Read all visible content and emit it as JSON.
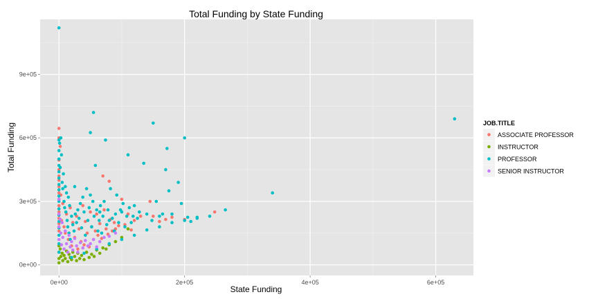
{
  "chart_data": {
    "type": "scatter",
    "title": "Total Funding by State Funding",
    "xlabel": "State Funding",
    "ylabel": "Total Funding",
    "xlim": [
      -30000,
      660000
    ],
    "ylim": [
      -50000,
      1160000
    ],
    "x_ticks": [
      0,
      200000,
      400000,
      600000
    ],
    "x_tick_labels": [
      "0e+00",
      "2e+05",
      "4e+05",
      "6e+05"
    ],
    "y_ticks": [
      0,
      300000,
      600000,
      900000
    ],
    "y_tick_labels": [
      "0e+00",
      "3e+05",
      "6e+05",
      "9e+05"
    ],
    "grid": true,
    "legend": {
      "title": "JOB.TITLE",
      "position": "right"
    },
    "series": [
      {
        "name": "ASSOCIATE PROFESSOR",
        "color": "#F8766D",
        "points": [
          [
            0,
            645000
          ],
          [
            0,
            600000
          ],
          [
            0,
            495000
          ],
          [
            0,
            450000
          ],
          [
            0,
            420000
          ],
          [
            0,
            400000
          ],
          [
            0,
            370000
          ],
          [
            0,
            340000
          ],
          [
            0,
            310000
          ],
          [
            0,
            280000
          ],
          [
            0,
            250000
          ],
          [
            0,
            220000
          ],
          [
            0,
            195000
          ],
          [
            0,
            160000
          ],
          [
            2000,
            560000
          ],
          [
            3000,
            330000
          ],
          [
            4000,
            210000
          ],
          [
            6000,
            290000
          ],
          [
            8000,
            180000
          ],
          [
            10000,
            150000
          ],
          [
            12000,
            240000
          ],
          [
            15000,
            120000
          ],
          [
            18000,
            270000
          ],
          [
            20000,
            90000
          ],
          [
            22000,
            200000
          ],
          [
            25000,
            130000
          ],
          [
            28000,
            230000
          ],
          [
            30000,
            75000
          ],
          [
            32000,
            170000
          ],
          [
            35000,
            110000
          ],
          [
            38000,
            280000
          ],
          [
            40000,
            95000
          ],
          [
            42000,
            205000
          ],
          [
            45000,
            150000
          ],
          [
            48000,
            85000
          ],
          [
            50000,
            250000
          ],
          [
            52000,
            180000
          ],
          [
            55000,
            120000
          ],
          [
            58000,
            160000
          ],
          [
            60000,
            240000
          ],
          [
            62000,
            140000
          ],
          [
            65000,
            195000
          ],
          [
            68000,
            125000
          ],
          [
            70000,
            420000
          ],
          [
            72000,
            260000
          ],
          [
            75000,
            170000
          ],
          [
            78000,
            145000
          ],
          [
            80000,
            395000
          ],
          [
            82000,
            215000
          ],
          [
            85000,
            160000
          ],
          [
            88000,
            200000
          ],
          [
            90000,
            170000
          ],
          [
            95000,
            185000
          ],
          [
            100000,
            310000
          ],
          [
            105000,
            190000
          ],
          [
            110000,
            240000
          ],
          [
            115000,
            165000
          ],
          [
            120000,
            210000
          ],
          [
            130000,
            230000
          ],
          [
            145000,
            300000
          ],
          [
            150000,
            230000
          ],
          [
            160000,
            205000
          ],
          [
            170000,
            215000
          ],
          [
            180000,
            225000
          ],
          [
            200000,
            215000
          ],
          [
            248000,
            250000
          ]
        ]
      },
      {
        "name": "INSTRUCTOR",
        "color": "#7CAE00",
        "points": [
          [
            0,
            90000
          ],
          [
            0,
            60000
          ],
          [
            0,
            30000
          ],
          [
            0,
            10000
          ],
          [
            2000,
            75000
          ],
          [
            3000,
            40000
          ],
          [
            5000,
            55000
          ],
          [
            6000,
            20000
          ],
          [
            8000,
            45000
          ],
          [
            10000,
            30000
          ],
          [
            12000,
            65000
          ],
          [
            14000,
            15000
          ],
          [
            16000,
            50000
          ],
          [
            18000,
            35000
          ],
          [
            20000,
            25000
          ],
          [
            22000,
            60000
          ],
          [
            25000,
            40000
          ],
          [
            28000,
            20000
          ],
          [
            30000,
            55000
          ],
          [
            33000,
            30000
          ],
          [
            36000,
            45000
          ],
          [
            40000,
            25000
          ],
          [
            44000,
            60000
          ],
          [
            48000,
            35000
          ],
          [
            52000,
            50000
          ],
          [
            56000,
            40000
          ],
          [
            60000,
            70000
          ],
          [
            65000,
            55000
          ],
          [
            70000,
            80000
          ],
          [
            75000,
            75000
          ],
          [
            80000,
            95000
          ],
          [
            90000,
            110000
          ],
          [
            100000,
            130000
          ],
          [
            110000,
            170000
          ]
        ]
      },
      {
        "name": "PROFESSOR",
        "color": "#00BFC4",
        "points": [
          [
            0,
            1120000
          ],
          [
            0,
            590000
          ],
          [
            0,
            540000
          ],
          [
            0,
            500000
          ],
          [
            0,
            470000
          ],
          [
            0,
            440000
          ],
          [
            0,
            410000
          ],
          [
            0,
            380000
          ],
          [
            0,
            355000
          ],
          [
            0,
            325000
          ],
          [
            0,
            300000
          ],
          [
            0,
            265000
          ],
          [
            0,
            235000
          ],
          [
            0,
            205000
          ],
          [
            0,
            175000
          ],
          [
            0,
            140000
          ],
          [
            0,
            100000
          ],
          [
            0,
            60000
          ],
          [
            1000,
            575000
          ],
          [
            2000,
            460000
          ],
          [
            3000,
            600000
          ],
          [
            4000,
            520000
          ],
          [
            5000,
            390000
          ],
          [
            6000,
            360000
          ],
          [
            7000,
            430000
          ],
          [
            8000,
            300000
          ],
          [
            9000,
            270000
          ],
          [
            10000,
            370000
          ],
          [
            11000,
            250000
          ],
          [
            12000,
            340000
          ],
          [
            13000,
            210000
          ],
          [
            14000,
            180000
          ],
          [
            15000,
            320000
          ],
          [
            16000,
            150000
          ],
          [
            17000,
            280000
          ],
          [
            18000,
            120000
          ],
          [
            20000,
            230000
          ],
          [
            22000,
            190000
          ],
          [
            24000,
            160000
          ],
          [
            25000,
            370000
          ],
          [
            26000,
            240000
          ],
          [
            28000,
            200000
          ],
          [
            30000,
            260000
          ],
          [
            32000,
            220000
          ],
          [
            34000,
            290000
          ],
          [
            36000,
            175000
          ],
          [
            38000,
            320000
          ],
          [
            40000,
            250000
          ],
          [
            42000,
            140000
          ],
          [
            44000,
            360000
          ],
          [
            46000,
            210000
          ],
          [
            48000,
            270000
          ],
          [
            50000,
            625000
          ],
          [
            50000,
            330000
          ],
          [
            52000,
            180000
          ],
          [
            54000,
            300000
          ],
          [
            55000,
            720000
          ],
          [
            56000,
            230000
          ],
          [
            58000,
            470000
          ],
          [
            60000,
            260000
          ],
          [
            62000,
            160000
          ],
          [
            64000,
            210000
          ],
          [
            65000,
            250000
          ],
          [
            66000,
            280000
          ],
          [
            68000,
            150000
          ],
          [
            70000,
            230000
          ],
          [
            72000,
            300000
          ],
          [
            74000,
            590000
          ],
          [
            76000,
            190000
          ],
          [
            78000,
            260000
          ],
          [
            80000,
            210000
          ],
          [
            82000,
            360000
          ],
          [
            85000,
            220000
          ],
          [
            88000,
            160000
          ],
          [
            90000,
            240000
          ],
          [
            92000,
            330000
          ],
          [
            95000,
            200000
          ],
          [
            98000,
            260000
          ],
          [
            100000,
            250000
          ],
          [
            102000,
            290000
          ],
          [
            105000,
            180000
          ],
          [
            108000,
            230000
          ],
          [
            110000,
            520000
          ],
          [
            112000,
            270000
          ],
          [
            115000,
            200000
          ],
          [
            118000,
            230000
          ],
          [
            120000,
            280000
          ],
          [
            125000,
            220000
          ],
          [
            128000,
            250000
          ],
          [
            135000,
            480000
          ],
          [
            140000,
            240000
          ],
          [
            148000,
            210000
          ],
          [
            150000,
            670000
          ],
          [
            155000,
            300000
          ],
          [
            160000,
            230000
          ],
          [
            165000,
            240000
          ],
          [
            170000,
            450000
          ],
          [
            172000,
            550000
          ],
          [
            175000,
            350000
          ],
          [
            180000,
            240000
          ],
          [
            190000,
            390000
          ],
          [
            195000,
            290000
          ],
          [
            200000,
            600000
          ],
          [
            205000,
            225000
          ],
          [
            210000,
            205000
          ],
          [
            220000,
            220000
          ],
          [
            240000,
            230000
          ],
          [
            265000,
            260000
          ],
          [
            340000,
            340000
          ],
          [
            630000,
            690000
          ],
          [
            20000,
            35000
          ],
          [
            40000,
            55000
          ],
          [
            60000,
            75000
          ],
          [
            80000,
            100000
          ],
          [
            100000,
            120000
          ],
          [
            120000,
            140000
          ],
          [
            140000,
            165000
          ],
          [
            160000,
            180000
          ],
          [
            180000,
            200000
          ],
          [
            200000,
            210000
          ],
          [
            220000,
            225000
          ]
        ]
      },
      {
        "name": "SENIOR INSTRUCTOR",
        "color": "#C77CFF",
        "points": [
          [
            0,
            310000
          ],
          [
            0,
            240000
          ],
          [
            0,
            180000
          ],
          [
            0,
            120000
          ],
          [
            2000,
            215000
          ],
          [
            3000,
            150000
          ],
          [
            4000,
            95000
          ],
          [
            5000,
            200000
          ],
          [
            6000,
            130000
          ],
          [
            8000,
            75000
          ],
          [
            10000,
            160000
          ],
          [
            12000,
            100000
          ],
          [
            14000,
            60000
          ],
          [
            16000,
            140000
          ],
          [
            18000,
            85000
          ],
          [
            20000,
            110000
          ],
          [
            22000,
            70000
          ],
          [
            25000,
            125000
          ],
          [
            28000,
            90000
          ],
          [
            30000,
            60000
          ],
          [
            34000,
            105000
          ],
          [
            38000,
            80000
          ],
          [
            42000,
            115000
          ],
          [
            46000,
            90000
          ],
          [
            50000,
            100000
          ],
          [
            55000,
            120000
          ],
          [
            60000,
            85000
          ],
          [
            65000,
            110000
          ],
          [
            72000,
            130000
          ],
          [
            80000,
            135000
          ],
          [
            90000,
            150000
          ]
        ]
      }
    ]
  }
}
